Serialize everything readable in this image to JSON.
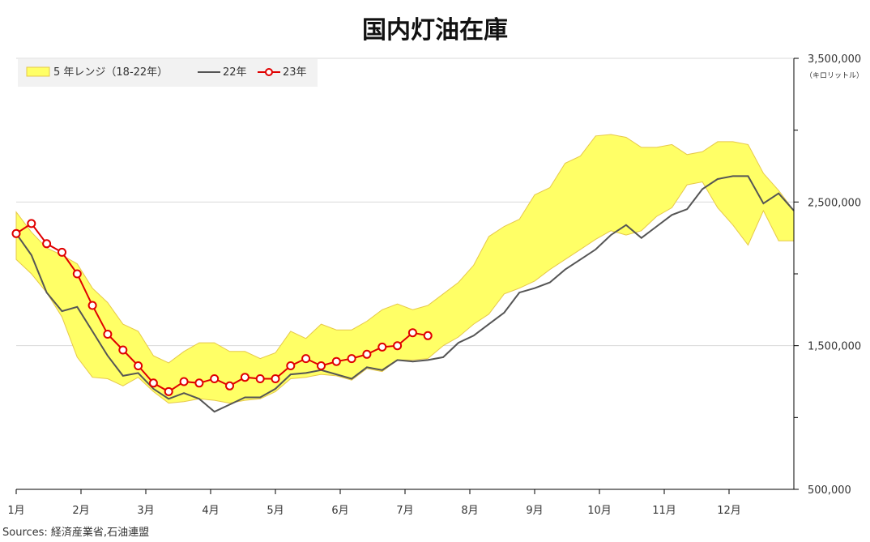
{
  "chart_data": {
    "type": "line",
    "title": "国内灯油在庫",
    "unit_label": "（キロリットル）",
    "source": "Sources: 経済産業省,石油連盟",
    "x_axis": {
      "months": [
        "1月",
        "2月",
        "3月",
        "4月",
        "5月",
        "6月",
        "7月",
        "8月",
        "9月",
        "10月",
        "11月",
        "12月"
      ],
      "weeks_per_year": 52
    },
    "y_axis": {
      "min": 500000,
      "max": 3500000,
      "tick_labels": [
        "500,000",
        "1,500,000",
        "2,500,000",
        "3,500,000"
      ],
      "tick_values": [
        500000,
        1500000,
        2500000,
        3500000
      ],
      "minor_ticks": [
        1000000,
        2000000,
        3000000
      ],
      "position": "right"
    },
    "grid": true,
    "legend_position": "top-left",
    "series": [
      {
        "name": "5 年レンジ（18-22年）",
        "kind": "range",
        "color": "#ffff66",
        "edge_color": "#e6c84a",
        "upper": [
          2430000,
          2290000,
          2180000,
          2130000,
          2070000,
          1900000,
          1800000,
          1650000,
          1600000,
          1430000,
          1380000,
          1460000,
          1520000,
          1520000,
          1460000,
          1460000,
          1410000,
          1450000,
          1600000,
          1550000,
          1650000,
          1610000,
          1610000,
          1670000,
          1750000,
          1790000,
          1750000,
          1780000,
          1860000,
          1940000,
          2060000,
          2260000,
          2330000,
          2380000,
          2550000,
          2600000,
          2770000,
          2820000,
          2960000,
          2970000,
          2950000,
          2880000,
          2880000,
          2900000,
          2830000,
          2850000,
          2920000,
          2920000,
          2900000,
          2700000,
          2580000,
          2440000
        ],
        "lower": [
          2100000,
          2000000,
          1870000,
          1700000,
          1420000,
          1280000,
          1270000,
          1220000,
          1280000,
          1180000,
          1100000,
          1110000,
          1130000,
          1120000,
          1100000,
          1120000,
          1130000,
          1180000,
          1270000,
          1280000,
          1300000,
          1290000,
          1260000,
          1340000,
          1320000,
          1400000,
          1400000,
          1410000,
          1500000,
          1560000,
          1650000,
          1720000,
          1860000,
          1900000,
          1950000,
          2030000,
          2100000,
          2170000,
          2240000,
          2300000,
          2270000,
          2300000,
          2400000,
          2460000,
          2620000,
          2640000,
          2460000,
          2340000,
          2200000,
          2440000,
          2230000,
          2230000
        ]
      },
      {
        "name": "22年",
        "kind": "line",
        "color": "#555555",
        "values": [
          2280000,
          2130000,
          1870000,
          1740000,
          1770000,
          1600000,
          1430000,
          1290000,
          1310000,
          1200000,
          1130000,
          1170000,
          1130000,
          1040000,
          1090000,
          1140000,
          1140000,
          1200000,
          1300000,
          1310000,
          1330000,
          1300000,
          1270000,
          1350000,
          1330000,
          1400000,
          1390000,
          1400000,
          1420000,
          1520000,
          1570000,
          1650000,
          1730000,
          1870000,
          1900000,
          1940000,
          2030000,
          2100000,
          2170000,
          2270000,
          2340000,
          2250000,
          2330000,
          2410000,
          2450000,
          2590000,
          2660000,
          2680000,
          2680000,
          2490000,
          2560000,
          2440000
        ]
      },
      {
        "name": "23年",
        "kind": "line-marker",
        "color": "#e00000",
        "values": [
          2280000,
          2350000,
          2210000,
          2150000,
          2000000,
          1780000,
          1580000,
          1470000,
          1360000,
          1240000,
          1180000,
          1250000,
          1240000,
          1270000,
          1220000,
          1280000,
          1270000,
          1270000,
          1360000,
          1410000,
          1360000,
          1390000,
          1410000,
          1440000,
          1490000,
          1500000,
          1590000,
          1570000
        ]
      }
    ]
  }
}
